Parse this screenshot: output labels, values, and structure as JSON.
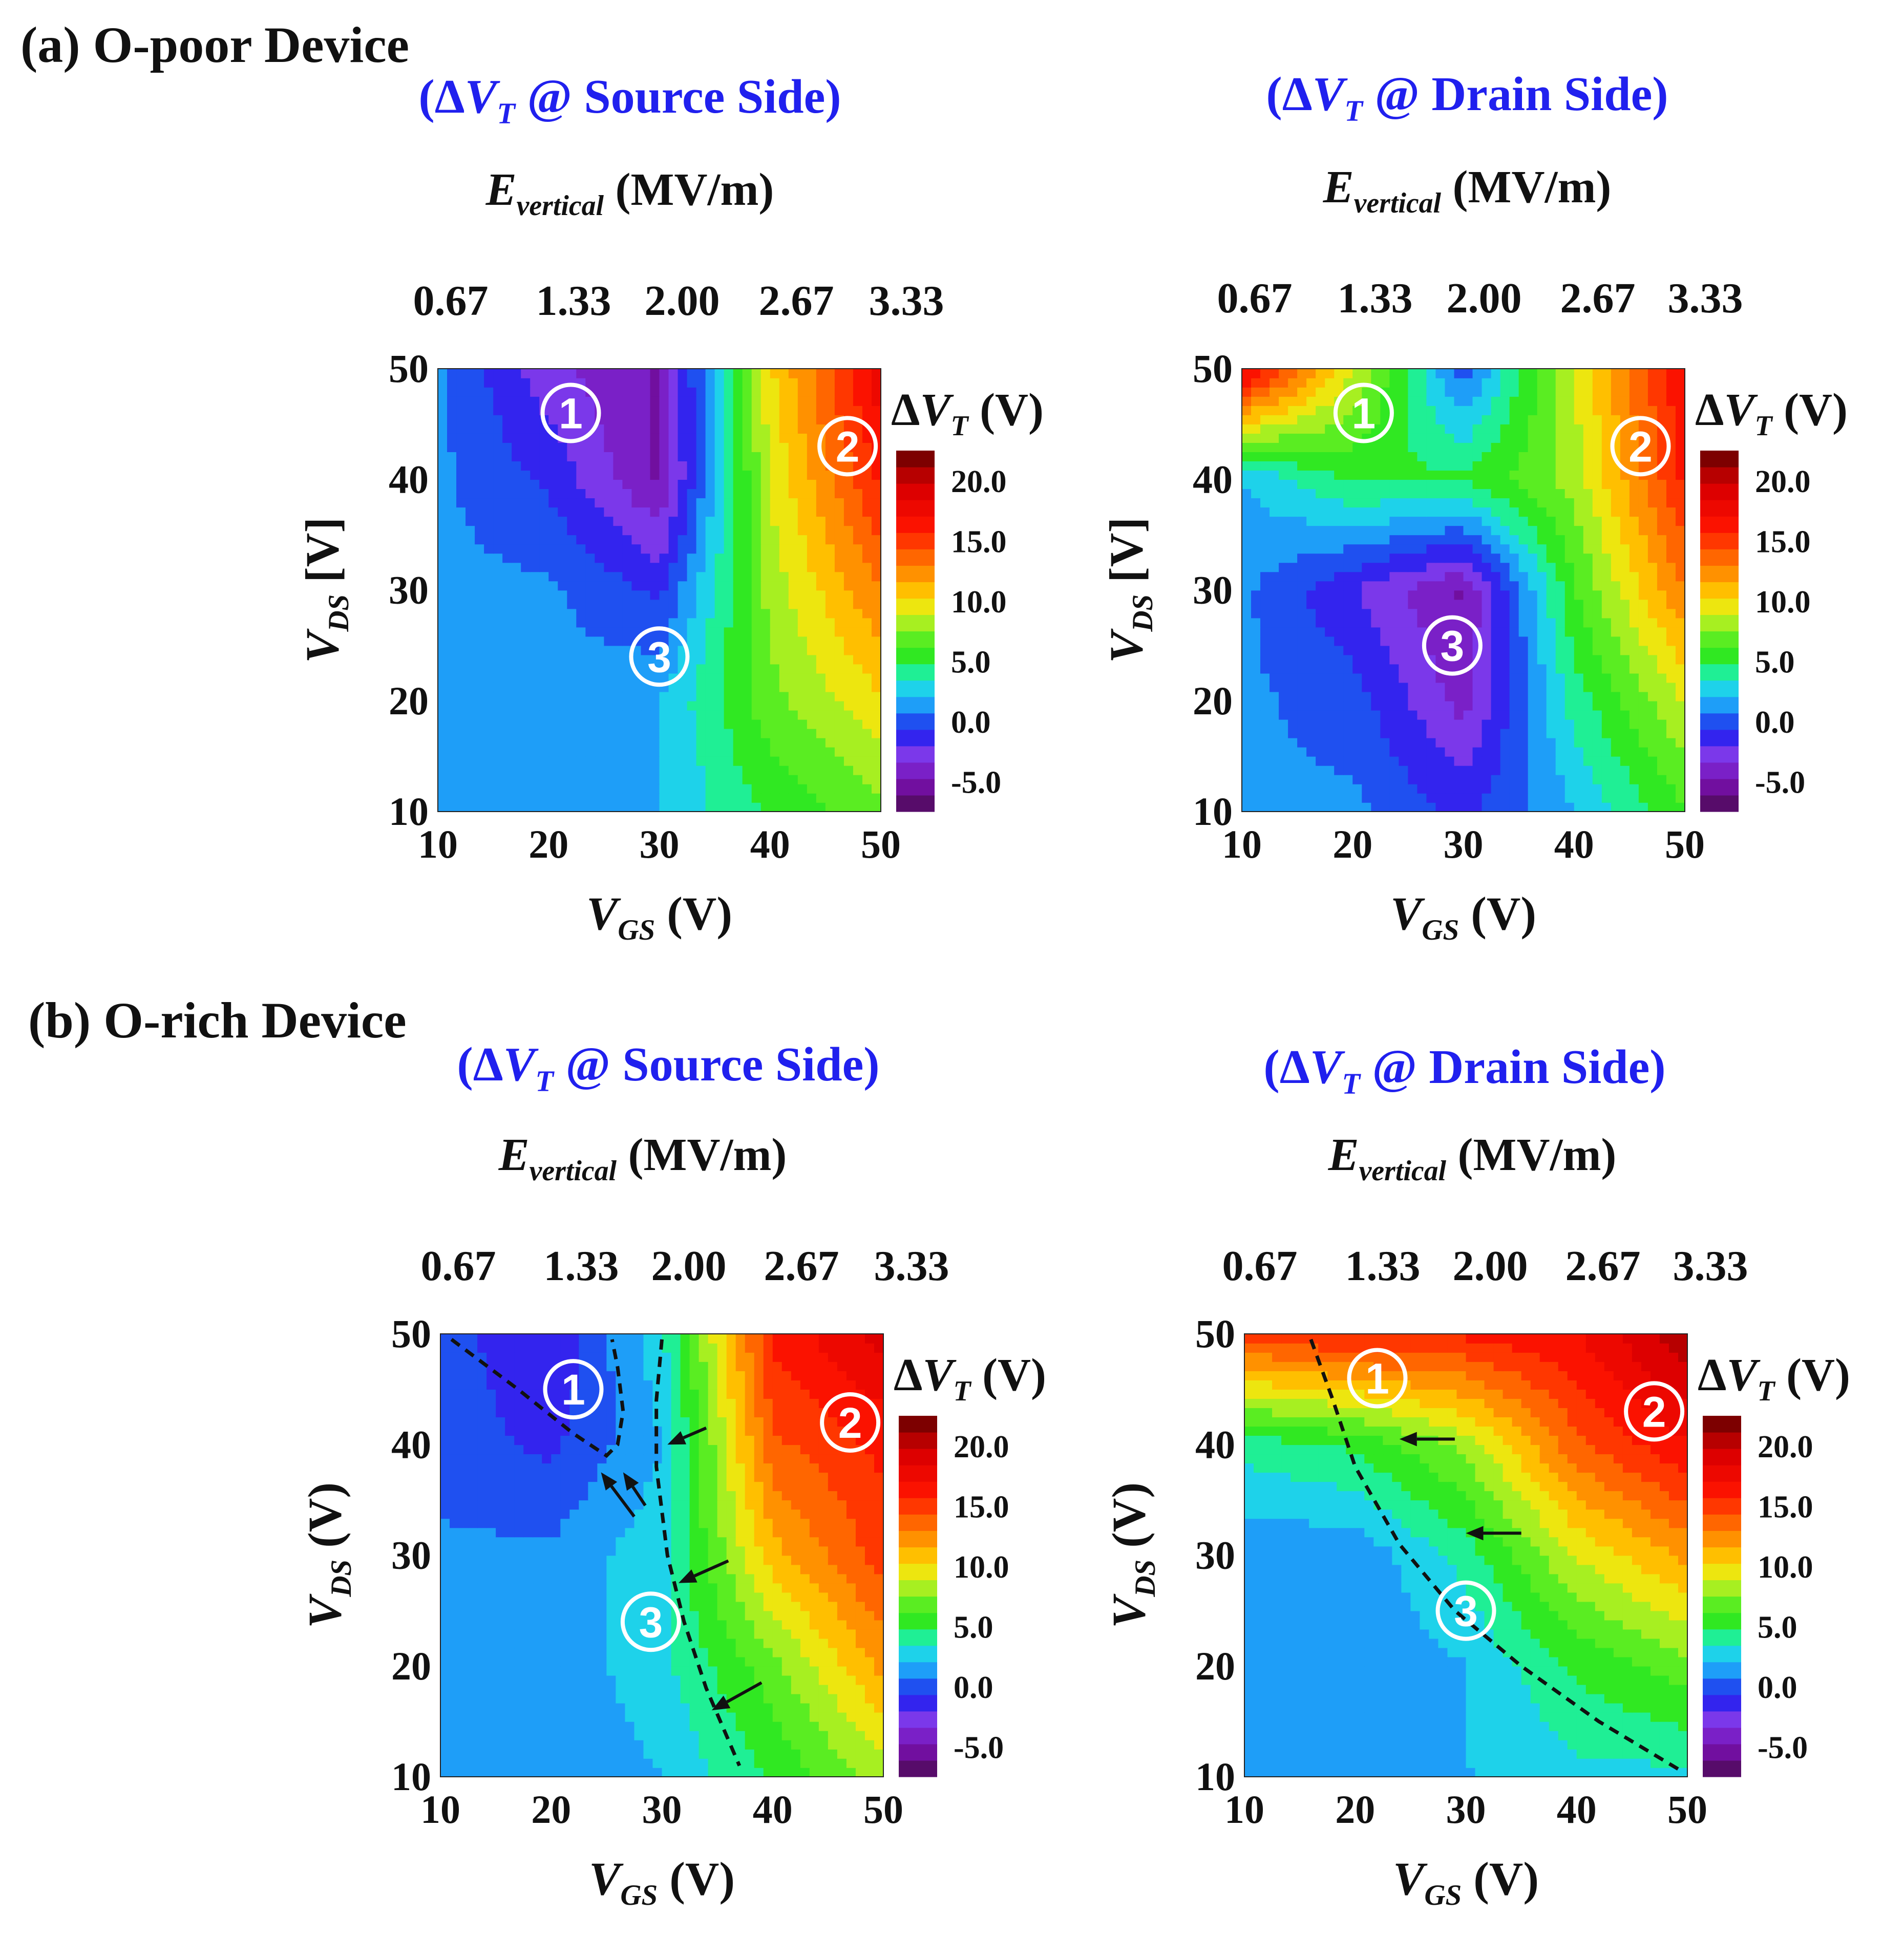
{
  "sections": [
    {
      "id": "a",
      "label": "(a) O-poor Device"
    },
    {
      "id": "b",
      "label": "(b) O-rich Device"
    }
  ],
  "chart_data": [
    {
      "type": "heatmap",
      "panel": "a-source",
      "title": "(ΔVT @ Source Side)",
      "title_parts": {
        "open": "(Δ",
        "var": "V",
        "sub": "T",
        "rest": " @ Source Side)"
      },
      "top_axis_label": {
        "var": "E",
        "sub": "vertical",
        "unit": " (MV/m)"
      },
      "top_ticks": [
        "0.67",
        "1.33",
        "2.00",
        "2.67",
        "3.33"
      ],
      "xlabel": {
        "var": "V",
        "sub": "GS",
        "unit": " (V)"
      },
      "ylabel": {
        "var": "V",
        "sub": "DS",
        "unit": " [V]"
      },
      "x_ticks": [
        "10",
        "20",
        "30",
        "40",
        "50"
      ],
      "y_ticks": [
        "10",
        "20",
        "30",
        "40",
        "50"
      ],
      "xlim": [
        10,
        50
      ],
      "ylim": [
        10,
        50
      ],
      "colorbar": {
        "title": {
          "open": "Δ",
          "var": "V",
          "sub": "T",
          "unit": " (V)"
        },
        "ticks": [
          "20.0",
          "15.0",
          "10.0",
          "5.0",
          "0.0",
          "-5.0"
        ],
        "range": [
          -7.5,
          22.5
        ]
      },
      "x": [
        10,
        20,
        30,
        40,
        50
      ],
      "y": [
        10,
        20,
        30,
        40,
        50
      ],
      "z": [
        [
          1,
          1,
          2,
          5,
          7
        ],
        [
          1,
          1,
          2,
          7,
          10
        ],
        [
          1,
          1,
          -1,
          8,
          13
        ],
        [
          1,
          -1,
          -5,
          9,
          16
        ],
        [
          1,
          -3,
          -5,
          10,
          18
        ]
      ],
      "annotations": [
        {
          "label": "1",
          "x": 22,
          "y": 46,
          "color": "#ffffff"
        },
        {
          "label": "2",
          "x": 47,
          "y": 43,
          "color": "#ffffff"
        },
        {
          "label": "3",
          "x": 30,
          "y": 24,
          "color": "#ffffff"
        }
      ],
      "dashed_lines": [],
      "arrows": []
    },
    {
      "type": "heatmap",
      "panel": "a-drain",
      "title": "(ΔVT @ Drain Side)",
      "title_parts": {
        "open": "(Δ",
        "var": "V",
        "sub": "T",
        "rest": " @ Drain Side)"
      },
      "top_axis_label": {
        "var": "E",
        "sub": "vertical",
        "unit": " (MV/m)"
      },
      "top_ticks": [
        "0.67",
        "1.33",
        "2.00",
        "2.67",
        "3.33"
      ],
      "xlabel": {
        "var": "V",
        "sub": "GS",
        "unit": " (V)"
      },
      "ylabel": {
        "var": "V",
        "sub": "DS",
        "unit": " [V]"
      },
      "x_ticks": [
        "10",
        "20",
        "30",
        "40",
        "50"
      ],
      "y_ticks": [
        "10",
        "20",
        "30",
        "40",
        "50"
      ],
      "xlim": [
        10,
        50
      ],
      "ylim": [
        10,
        50
      ],
      "colorbar": {
        "title": {
          "open": "Δ",
          "var": "V",
          "sub": "T",
          "unit": " (V)"
        },
        "ticks": [
          "20.0",
          "15.0",
          "10.0",
          "5.0",
          "0.0",
          "-5.0"
        ],
        "range": [
          -7.5,
          22.5
        ]
      },
      "x": [
        10,
        20,
        30,
        40,
        50
      ],
      "y": [
        10,
        20,
        30,
        40,
        50
      ],
      "z": [
        [
          1,
          1,
          -1,
          2,
          6
        ],
        [
          1,
          0,
          -4,
          4,
          9
        ],
        [
          1,
          -2,
          -5,
          6,
          13
        ],
        [
          2,
          5,
          5,
          8,
          16
        ],
        [
          18,
          9,
          0,
          9,
          17
        ]
      ],
      "annotations": [
        {
          "label": "1",
          "x": 21,
          "y": 46,
          "color": "#ffffff"
        },
        {
          "label": "2",
          "x": 46,
          "y": 43,
          "color": "#ffffff"
        },
        {
          "label": "3",
          "x": 29,
          "y": 25,
          "color": "#ffffff"
        }
      ],
      "dashed_lines": [],
      "arrows": []
    },
    {
      "type": "heatmap",
      "panel": "b-source",
      "title": "(ΔVT @ Source Side)",
      "title_parts": {
        "open": "(Δ",
        "var": "V",
        "sub": "T",
        "rest": " @ Source Side)"
      },
      "top_axis_label": {
        "var": "E",
        "sub": "vertical",
        "unit": " (MV/m)"
      },
      "top_ticks": [
        "0.67",
        "1.33",
        "2.00",
        "2.67",
        "3.33"
      ],
      "xlabel": {
        "var": "V",
        "sub": "GS",
        "unit": " (V)"
      },
      "ylabel": {
        "var": "V",
        "sub": "DS",
        "unit": " (V)"
      },
      "x_ticks": [
        "10",
        "20",
        "30",
        "40",
        "50"
      ],
      "y_ticks": [
        "10",
        "20",
        "30",
        "40",
        "50"
      ],
      "xlim": [
        10,
        50
      ],
      "ylim": [
        10,
        50
      ],
      "colorbar": {
        "title": {
          "open": "Δ",
          "var": "V",
          "sub": "T",
          "unit": " (V)"
        },
        "ticks": [
          "20.0",
          "15.0",
          "10.0",
          "5.0",
          "0.0",
          "-5.0"
        ],
        "range": [
          -7.5,
          22.5
        ]
      },
      "x": [
        10,
        20,
        30,
        40,
        50
      ],
      "y": [
        10,
        20,
        30,
        40,
        50
      ],
      "z": [
        [
          1,
          1,
          2,
          5,
          8
        ],
        [
          1,
          1,
          3,
          7,
          12
        ],
        [
          1,
          1,
          3,
          11,
          15
        ],
        [
          0,
          -1,
          2,
          14,
          16
        ],
        [
          0,
          -2,
          3,
          16,
          19
        ]
      ],
      "annotations": [
        {
          "label": "1",
          "x": 22,
          "y": 45,
          "color": "#ffffff"
        },
        {
          "label": "2",
          "x": 47,
          "y": 42,
          "color": "#ffffff"
        },
        {
          "label": "3",
          "x": 29,
          "y": 24,
          "color": "#ffffff"
        }
      ],
      "dashed_lines": [
        {
          "points": [
            [
              11,
              49.5
            ],
            [
              17,
              45
            ],
            [
              22,
              41
            ],
            [
              25,
              39
            ],
            [
              26,
              40
            ],
            [
              26.5,
              43
            ],
            [
              26,
              47
            ],
            [
              25.5,
              49.5
            ]
          ]
        },
        {
          "points": [
            [
              30,
              49.5
            ],
            [
              29.5,
              44
            ],
            [
              29.5,
              38
            ],
            [
              30.5,
              30
            ],
            [
              32,
              24
            ],
            [
              34,
              18
            ],
            [
              37,
              11
            ]
          ]
        }
      ],
      "arrows": [
        {
          "from": [
            27.5,
            33.5
          ],
          "to": [
            24.5,
            37.5
          ]
        },
        {
          "from": [
            28.5,
            34.5
          ],
          "to": [
            26.5,
            37.5
          ]
        },
        {
          "from": [
            34,
            41.5
          ],
          "to": [
            30.5,
            40
          ]
        },
        {
          "from": [
            36,
            29.5
          ],
          "to": [
            31.5,
            27.5
          ]
        },
        {
          "from": [
            39,
            18.5
          ],
          "to": [
            34.5,
            16
          ]
        }
      ]
    },
    {
      "type": "heatmap",
      "panel": "b-drain",
      "title": "(ΔVT @ Drain Side)",
      "title_parts": {
        "open": "(Δ",
        "var": "V",
        "sub": "T",
        "rest": " @ Drain Side)"
      },
      "top_axis_label": {
        "var": "E",
        "sub": "vertical",
        "unit": " (MV/m)"
      },
      "top_ticks": [
        "0.67",
        "1.33",
        "2.00",
        "2.67",
        "3.33"
      ],
      "xlabel": {
        "var": "V",
        "sub": "GS",
        "unit": " (V)"
      },
      "ylabel": {
        "var": "V",
        "sub": "DS",
        "unit": " (V)"
      },
      "x_ticks": [
        "10",
        "20",
        "30",
        "40",
        "50"
      ],
      "y_ticks": [
        "10",
        "20",
        "30",
        "40",
        "50"
      ],
      "xlim": [
        10,
        50
      ],
      "ylim": [
        10,
        50
      ],
      "colorbar": {
        "title": {
          "open": "Δ",
          "var": "V",
          "sub": "T",
          "unit": " (V)"
        },
        "ticks": [
          "20.0",
          "15.0",
          "10.0",
          "5.0",
          "0.0",
          "-5.0"
        ],
        "range": [
          -7.5,
          22.5
        ]
      },
      "x": [
        10,
        20,
        30,
        40,
        50
      ],
      "y": [
        10,
        20,
        30,
        40,
        50
      ],
      "z": [
        [
          1,
          1,
          2,
          3,
          3
        ],
        [
          1,
          1,
          2,
          5,
          7
        ],
        [
          1,
          1,
          4,
          9,
          12
        ],
        [
          4,
          5,
          8,
          14,
          17
        ],
        [
          15,
          16,
          16,
          17,
          21
        ]
      ],
      "annotations": [
        {
          "label": "1",
          "x": 22,
          "y": 46,
          "color": "#ffffff"
        },
        {
          "label": "2",
          "x": 47,
          "y": 43,
          "color": "#ffffff"
        },
        {
          "label": "3",
          "x": 30,
          "y": 25,
          "color": "#ffffff"
        }
      ],
      "dashed_lines": [
        {
          "points": [
            [
              16,
              49.5
            ],
            [
              18,
              44
            ],
            [
              20,
              38
            ],
            [
              24,
              31
            ],
            [
              29,
              25
            ],
            [
              35,
              20
            ],
            [
              42,
              15
            ],
            [
              49.5,
              10.5
            ]
          ]
        }
      ],
      "arrows": [
        {
          "from": [
            29,
            40.5
          ],
          "to": [
            24,
            40.5
          ]
        },
        {
          "from": [
            35,
            32
          ],
          "to": [
            30,
            32
          ]
        }
      ]
    }
  ]
}
